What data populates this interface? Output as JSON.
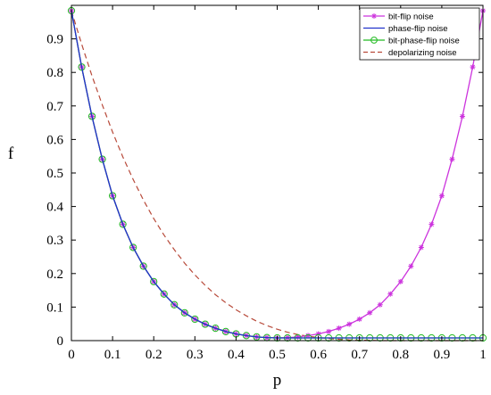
{
  "chart_data": {
    "type": "line",
    "title": "",
    "xlabel": "p",
    "ylabel": "f",
    "xlim": [
      0,
      1
    ],
    "ylim": [
      0,
      1
    ],
    "xticks": [
      "0",
      "0.1",
      "0.2",
      "0.3",
      "0.4",
      "0.5",
      "0.6",
      "0.7",
      "0.8",
      "0.9",
      "1"
    ],
    "yticks": [
      "0",
      "0.1",
      "0.2",
      "0.3",
      "0.4",
      "0.5",
      "0.6",
      "0.7",
      "0.8",
      "0.9"
    ],
    "grid": false,
    "legend_position": "top-right",
    "x": [
      0,
      0.025,
      0.05,
      0.075,
      0.1,
      0.125,
      0.15,
      0.175,
      0.2,
      0.225,
      0.25,
      0.275,
      0.3,
      0.325,
      0.35,
      0.375,
      0.4,
      0.425,
      0.45,
      0.475,
      0.5,
      0.525,
      0.55,
      0.575,
      0.6,
      0.625,
      0.65,
      0.675,
      0.7,
      0.725,
      0.75,
      0.775,
      0.8,
      0.825,
      0.85,
      0.875,
      0.9,
      0.925,
      0.95,
      0.975,
      1
    ],
    "series": [
      {
        "name": "bit-flip noise",
        "color": "#cc33dd",
        "line_style": "solid",
        "marker": "asterisk",
        "values": [
          0.984,
          0.816,
          0.669,
          0.541,
          0.432,
          0.347,
          0.278,
          0.222,
          0.176,
          0.139,
          0.107,
          0.083,
          0.064,
          0.049,
          0.037,
          0.027,
          0.02,
          0.015,
          0.011,
          0.009,
          0.008,
          0.009,
          0.011,
          0.015,
          0.02,
          0.027,
          0.037,
          0.049,
          0.064,
          0.083,
          0.107,
          0.139,
          0.176,
          0.222,
          0.278,
          0.347,
          0.432,
          0.541,
          0.669,
          0.816,
          0.984
        ]
      },
      {
        "name": "phase-flip noise",
        "color": "#2233cc",
        "line_style": "solid",
        "marker": "none",
        "values": [
          0.984,
          0.816,
          0.669,
          0.541,
          0.432,
          0.347,
          0.278,
          0.222,
          0.176,
          0.139,
          0.107,
          0.083,
          0.064,
          0.049,
          0.037,
          0.027,
          0.02,
          0.015,
          0.011,
          0.009,
          0.008,
          0.008,
          0.008,
          0.008,
          0.008,
          0.008,
          0.008,
          0.008,
          0.008,
          0.008,
          0.008,
          0.008,
          0.008,
          0.008,
          0.008,
          0.008,
          0.008,
          0.008,
          0.008,
          0.008,
          0.008
        ]
      },
      {
        "name": "bit-phase-flip noise",
        "color": "#22bb22",
        "line_style": "solid",
        "marker": "circle",
        "values": [
          0.984,
          0.816,
          0.669,
          0.541,
          0.432,
          0.347,
          0.278,
          0.222,
          0.176,
          0.139,
          0.107,
          0.083,
          0.064,
          0.049,
          0.037,
          0.027,
          0.02,
          0.015,
          0.011,
          0.009,
          0.008,
          0.008,
          0.008,
          0.008,
          0.008,
          0.008,
          0.008,
          0.008,
          0.008,
          0.008,
          0.008,
          0.008,
          0.008,
          0.008,
          0.008,
          0.008,
          0.008,
          0.008,
          0.008,
          0.008,
          0.008
        ]
      },
      {
        "name": "depolarizing noise",
        "color": "#b84a3a",
        "line_style": "dashed",
        "marker": "none",
        "values": [
          0.984,
          0.884,
          0.79,
          0.703,
          0.622,
          0.548,
          0.481,
          0.419,
          0.364,
          0.315,
          0.271,
          0.231,
          0.196,
          0.165,
          0.137,
          0.113,
          0.092,
          0.074,
          0.058,
          0.045,
          0.034,
          0.025,
          0.018,
          0.013,
          0.009,
          0.006,
          0.004,
          0.002,
          0.001,
          0.001,
          0,
          0,
          0,
          0,
          0,
          0,
          0,
          0,
          0,
          0,
          0
        ]
      }
    ]
  }
}
